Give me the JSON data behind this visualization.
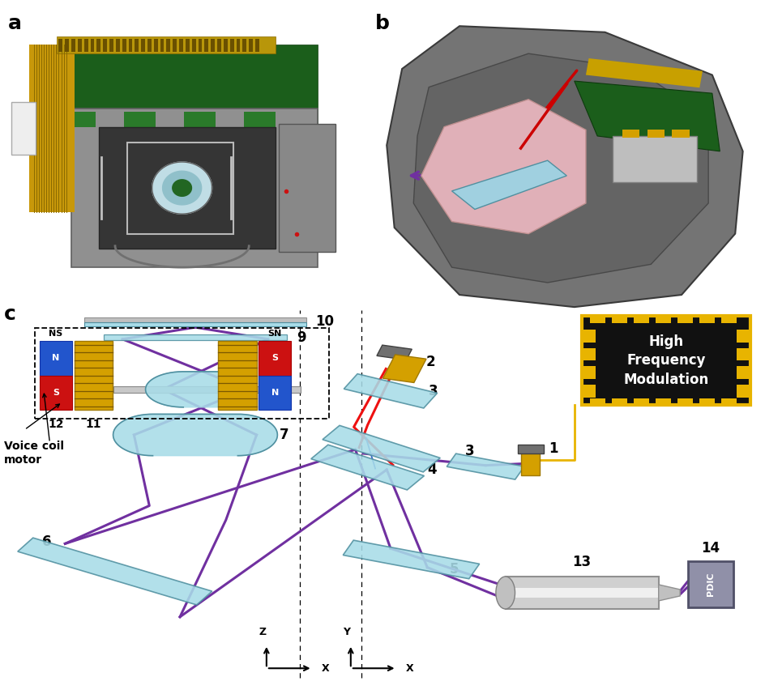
{
  "panel_labels": [
    "a",
    "b",
    "c"
  ],
  "panel_label_fontsize": 18,
  "panel_label_fontweight": "bold",
  "background_color": "#ffffff",
  "purple": "#7030A0",
  "red": "#EE1111",
  "blue": "#3366CC",
  "cyan_lens": "#A8DCE8",
  "cyan_dark": "#5090A0",
  "gold": "#E8B400",
  "dark": "#1A1A1A",
  "label_fontsize": 12,
  "hfm_text": "High\nFrequency\nModulation",
  "hfm_fontsize": 12,
  "voice_coil": "Voice coil\nmotor"
}
